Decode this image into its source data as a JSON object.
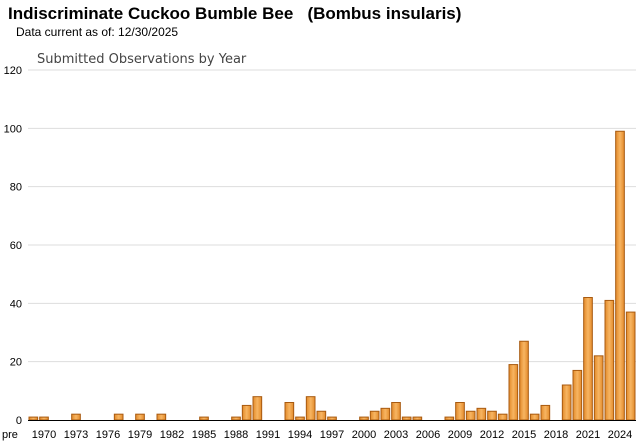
{
  "header": {
    "species_title": "Indiscriminate Cuckoo Bumble Bee   (Bombus insularis)",
    "data_current": "Data current as of: 12/30/2025"
  },
  "colors": {
    "bar_fill_light": "#f7b562",
    "bar_fill_dark": "#e38a2a",
    "bar_stroke": "#a85a10",
    "grid": "#dddddd",
    "axis": "#000000"
  },
  "chart_data": {
    "type": "bar",
    "title": "Submitted Observations by Year",
    "xlabel": "",
    "ylabel": "",
    "ylim": [
      0,
      120
    ],
    "yticks": [
      0,
      20,
      40,
      60,
      80,
      100,
      120
    ],
    "grid": true,
    "legend": "none",
    "categories": [
      "pre 1970",
      "1970",
      "1971",
      "1972",
      "1973",
      "1974",
      "1975",
      "1976",
      "1977",
      "1978",
      "1979",
      "1980",
      "1981",
      "1982",
      "1983",
      "1984",
      "1985",
      "1986",
      "1987",
      "1988",
      "1989",
      "1990",
      "1991",
      "1992",
      "1993",
      "1994",
      "1995",
      "1996",
      "1997",
      "1998",
      "1999",
      "2000",
      "2001",
      "2002",
      "2003",
      "2004",
      "2005",
      "2006",
      "2007",
      "2008",
      "2009",
      "2010",
      "2011",
      "2012",
      "2013",
      "2014",
      "2015",
      "2016",
      "2017",
      "2018",
      "2019",
      "2020",
      "2021",
      "2022",
      "2023",
      "2024",
      "2025"
    ],
    "tick_labels": [
      "pre",
      "1970",
      "1973",
      "1976",
      "1979",
      "1982",
      "1985",
      "1988",
      "1991",
      "1994",
      "1997",
      "2000",
      "2003",
      "2006",
      "2009",
      "2012",
      "2015",
      "2018",
      "2021",
      "2024"
    ],
    "values": [
      1,
      1,
      0,
      0,
      2,
      0,
      0,
      0,
      2,
      0,
      2,
      0,
      2,
      0,
      0,
      0,
      1,
      0,
      0,
      1,
      5,
      8,
      0,
      0,
      6,
      1,
      8,
      3,
      1,
      0,
      0,
      1,
      3,
      4,
      6,
      1,
      1,
      0,
      0,
      1,
      6,
      3,
      4,
      3,
      2,
      19,
      27,
      2,
      5,
      0,
      12,
      17,
      42,
      22,
      41,
      99,
      37
    ]
  }
}
